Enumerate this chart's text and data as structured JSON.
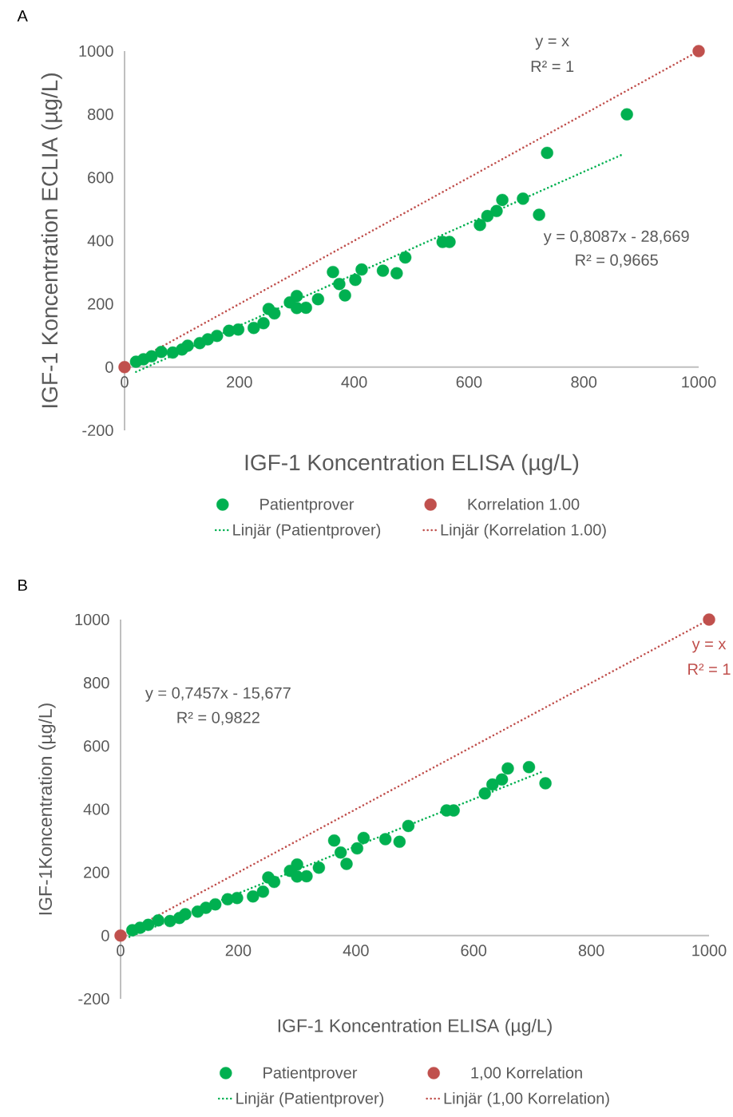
{
  "chart_data": [
    {
      "type": "scatter",
      "title": "A",
      "xlabel": "IGF-1 Koncentration ELISA (µg/L)",
      "ylabel": "IGF-1 Koncentration ECLIA (µg/L)",
      "xlim": [
        0,
        1000
      ],
      "ylim": [
        -200,
        1000
      ],
      "xticks": [
        0,
        200,
        400,
        600,
        800,
        1000
      ],
      "yticks": [
        -200,
        0,
        200,
        400,
        600,
        800,
        1000
      ],
      "grid": false,
      "legend": "bottom",
      "annotations": [
        "y = x",
        "R² = 1",
        "y = 0,8087x - 28,669",
        "R² = 0,9665"
      ],
      "series": [
        {
          "name": "Patientprover",
          "marker": "circle",
          "color": "#00b050",
          "x": [
            20,
            33,
            47,
            64,
            84,
            100,
            110,
            131,
            145,
            161,
            182,
            198,
            225,
            242,
            251,
            261,
            288,
            300,
            300,
            316,
            337,
            363,
            374,
            384,
            402,
            413,
            450,
            474,
            489,
            554,
            566,
            619,
            632,
            648,
            658,
            694,
            722,
            736,
            875
          ],
          "values": [
            17,
            25,
            34,
            48,
            46,
            56,
            68,
            76,
            88,
            99,
            115,
            119,
            124,
            139,
            184,
            170,
            205,
            225,
            187,
            188,
            215,
            301,
            263,
            227,
            276,
            309,
            305,
            297,
            347,
            396,
            396,
            450,
            478,
            494,
            529,
            533,
            482,
            678,
            800
          ]
        },
        {
          "name": "Korrelation 1.00",
          "marker": "circle",
          "color": "#c0504d",
          "x": [
            0,
            1000
          ],
          "values": [
            0,
            1000
          ]
        },
        {
          "name": "Linjär (Patientprover)",
          "type": "line",
          "marker": "none",
          "line_style": "dotted",
          "color": "#00b050",
          "x": [
            20,
            865
          ],
          "values": [
            -15,
            671
          ]
        },
        {
          "name": "Linjär (Korrelation 1.00)",
          "type": "line",
          "marker": "none",
          "line_style": "dotted",
          "color": "#c0504d",
          "x": [
            0,
            1000
          ],
          "values": [
            0,
            1000
          ]
        }
      ]
    },
    {
      "type": "scatter",
      "title": "B",
      "xlabel": "IGF-1 Koncentration ELISA (µg/L)",
      "ylabel": "IGF-1Koncentration (µg/L)",
      "xlim": [
        0,
        1000
      ],
      "ylim": [
        -200,
        1000
      ],
      "xticks": [
        0,
        200,
        400,
        600,
        800,
        1000
      ],
      "yticks": [
        -200,
        0,
        200,
        400,
        600,
        800,
        1000
      ],
      "grid": false,
      "legend": "bottom",
      "annotations": [
        "y = 0,7457x - 15,677",
        "R² = 0,9822",
        "y = x",
        "R² = 1"
      ],
      "series": [
        {
          "name": "Patientprover",
          "marker": "circle",
          "color": "#00b050",
          "x": [
            20,
            33,
            47,
            64,
            84,
            100,
            110,
            131,
            145,
            161,
            182,
            198,
            225,
            242,
            251,
            261,
            288,
            300,
            300,
            316,
            337,
            363,
            374,
            384,
            402,
            413,
            450,
            474,
            489,
            554,
            566,
            619,
            632,
            648,
            658,
            694,
            722
          ],
          "values": [
            17,
            25,
            34,
            48,
            46,
            56,
            68,
            76,
            88,
            99,
            115,
            119,
            124,
            139,
            184,
            170,
            205,
            225,
            187,
            188,
            215,
            301,
            263,
            227,
            276,
            309,
            305,
            297,
            347,
            396,
            396,
            450,
            478,
            494,
            529,
            533,
            482
          ]
        },
        {
          "name": "1,00 Korrelation",
          "marker": "circle",
          "color": "#c0504d",
          "x": [
            0,
            1000
          ],
          "values": [
            0,
            1000
          ]
        },
        {
          "name": "Linjär (Patientprover)",
          "type": "line",
          "marker": "none",
          "line_style": "dotted",
          "color": "#00b050",
          "x": [
            15,
            717
          ],
          "values": [
            -4,
            519
          ]
        },
        {
          "name": "Linjär (1,00 Korrelation)",
          "type": "line",
          "marker": "none",
          "line_style": "dotted",
          "color": "#c0504d",
          "x": [
            0,
            1000
          ],
          "values": [
            0,
            1000
          ]
        }
      ]
    }
  ]
}
